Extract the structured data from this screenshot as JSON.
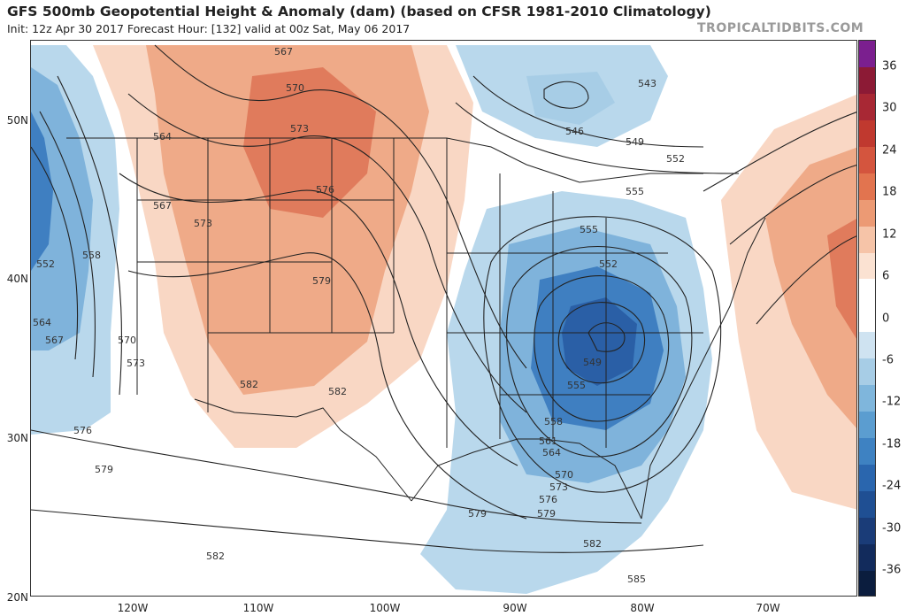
{
  "header": {
    "title": "GFS 500mb Geopotential Height & Anomaly (dam) (based on CFSR 1981-2010 Climatology)",
    "subtitle": "Init: 12z Apr 30 2017   Forecast Hour: [132]   valid at 00z Sat, May 06 2017",
    "credit": "TROPICALTIDBITS.COM"
  },
  "axes": {
    "lat_labels": [
      "50N",
      "40N",
      "30N",
      "20N"
    ],
    "lon_labels": [
      "120W",
      "110W",
      "100W",
      "90W",
      "80W",
      "70W"
    ]
  },
  "colorbar": {
    "labels": [
      "36",
      "30",
      "24",
      "18",
      "12",
      "6",
      "0",
      "-6",
      "-12",
      "-18",
      "-24",
      "-30",
      "-36"
    ],
    "colors": [
      "#7b1f8f",
      "#8c1a35",
      "#a82834",
      "#c0392f",
      "#d4553e",
      "#e2744f",
      "#ec9a74",
      "#f6c4a8",
      "#fbe2d2",
      "#ffffff",
      "#ffffff",
      "#cfe3f1",
      "#a7cde6",
      "#7fb6dc",
      "#5b9dd0",
      "#3e82c2",
      "#2a66ae",
      "#1f4f93",
      "#1a3c78",
      "#122b5c",
      "#0b1d3e"
    ]
  },
  "contour_labels": [
    "567",
    "570",
    "573",
    "576",
    "579",
    "582",
    "564",
    "573",
    "567",
    "552",
    "558",
    "564",
    "567",
    "570",
    "573",
    "576",
    "579",
    "582",
    "579",
    "582",
    "543",
    "546",
    "549",
    "552",
    "555",
    "555",
    "552",
    "549",
    "555",
    "558",
    "561",
    "564",
    "570",
    "573",
    "576",
    "579",
    "582",
    "585"
  ],
  "colors": {
    "warm_light": "#f9d7c4",
    "warm_mid": "#efaa88",
    "warm_dark": "#e07b5c",
    "cool_light": "#b9d8ec",
    "cool_mid": "#7fb3db",
    "cool_dark": "#3f7fc1",
    "cool_deepest": "#2a5fa6"
  }
}
